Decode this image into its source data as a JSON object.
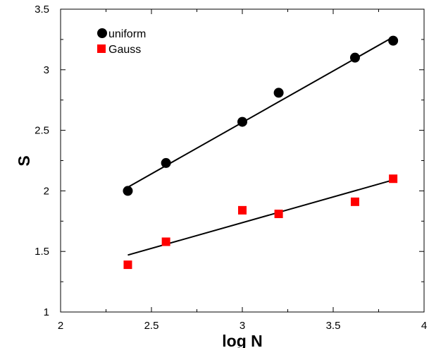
{
  "chart_data": {
    "type": "scatter",
    "title": "",
    "xlabel": "log N",
    "ylabel": "S",
    "xlim": [
      2,
      4
    ],
    "ylim": [
      1,
      3.5
    ],
    "x_ticks": [
      "2",
      "2.5",
      "3",
      "3.5",
      "4"
    ],
    "y_ticks": [
      "1",
      "1.5",
      "2",
      "2.5",
      "3",
      "3.5"
    ],
    "x_tick_values": [
      2,
      2.5,
      3,
      3.5,
      4
    ],
    "y_tick_values": [
      1,
      1.5,
      2,
      2.5,
      3,
      3.5
    ],
    "grid": false,
    "legend_position": "top-left",
    "series": [
      {
        "name": "uniform",
        "marker": "circle",
        "color": "#000000",
        "x": [
          2.37,
          2.58,
          3.0,
          3.2,
          3.62,
          3.83
        ],
        "y": [
          2.0,
          2.23,
          2.57,
          2.81,
          3.1,
          3.24
        ],
        "fit_line": {
          "x": [
            2.37,
            3.83
          ],
          "y": [
            2.03,
            3.27
          ]
        }
      },
      {
        "name": "Gauss",
        "marker": "square",
        "color": "#ff0000",
        "x": [
          2.37,
          2.58,
          3.0,
          3.2,
          3.62,
          3.83
        ],
        "y": [
          1.39,
          1.58,
          1.84,
          1.81,
          1.91,
          2.1
        ],
        "fit_line": {
          "x": [
            2.37,
            3.83
          ],
          "y": [
            1.47,
            2.09
          ]
        }
      }
    ]
  }
}
